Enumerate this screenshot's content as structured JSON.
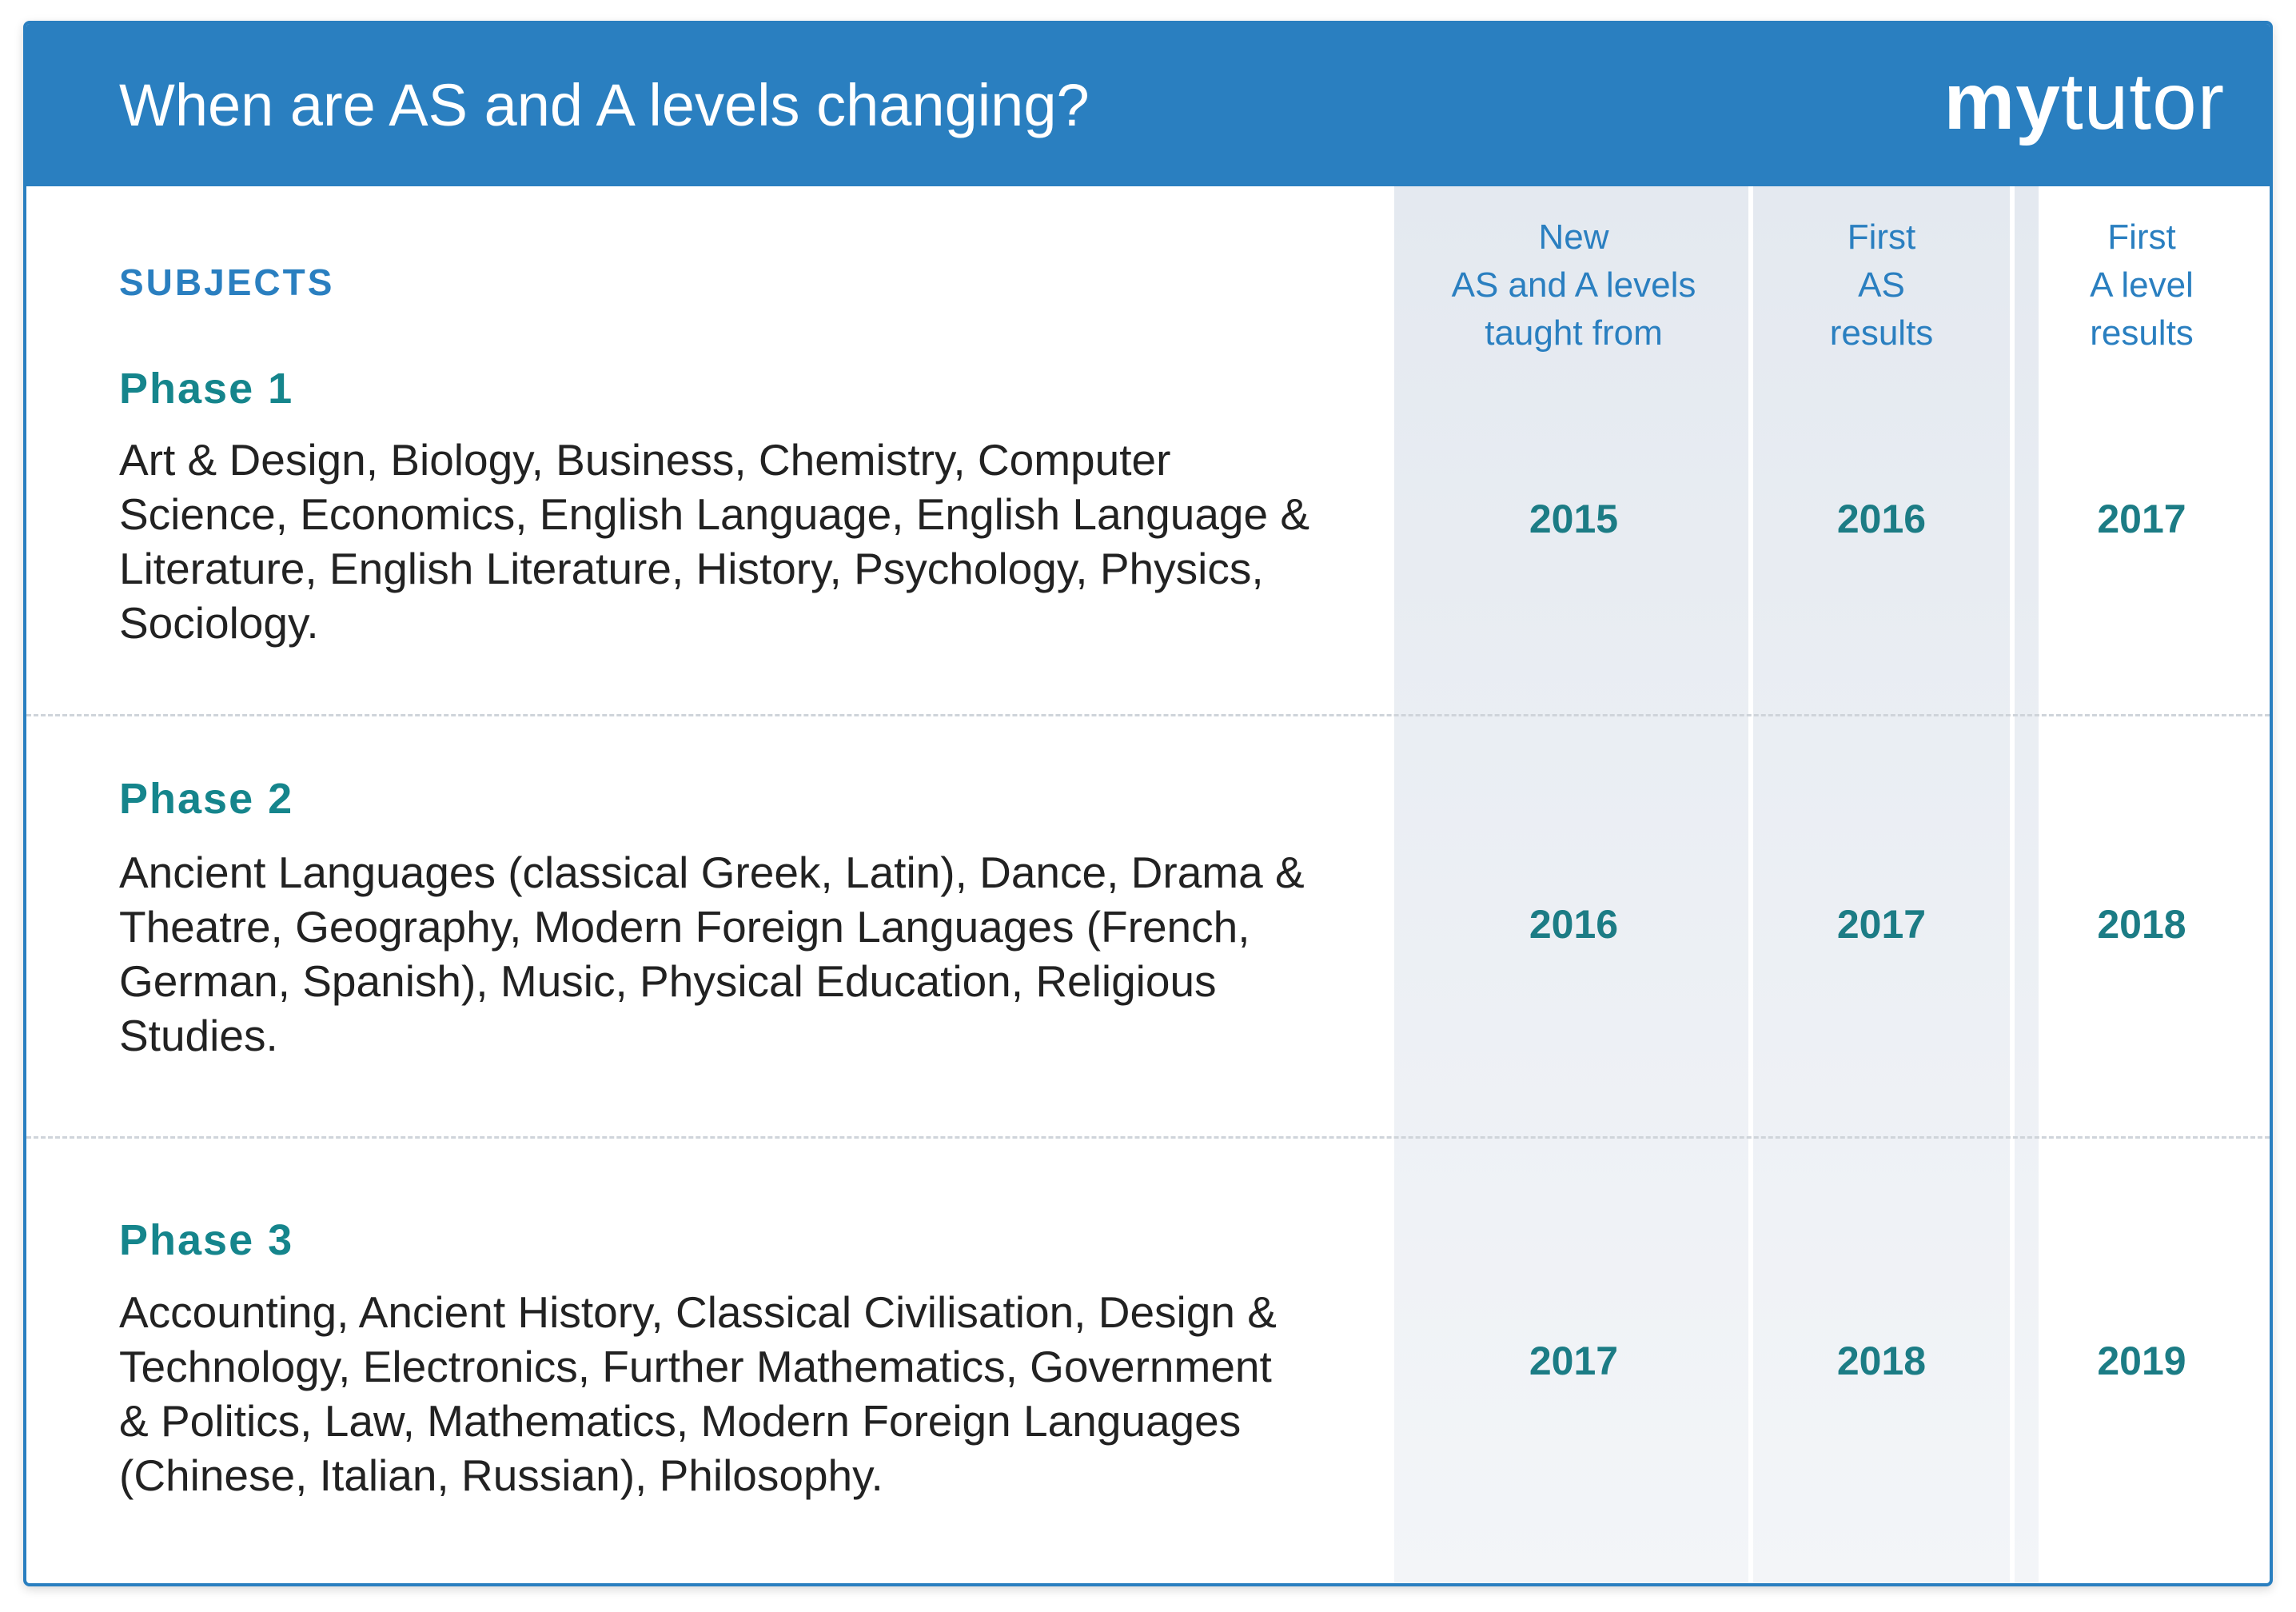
{
  "header": {
    "title": "When are AS and A levels changing?",
    "logo": {
      "bold": "my",
      "light": "tutor"
    }
  },
  "table": {
    "subjects_heading": "SUBJECTS",
    "columns": [
      [
        "New",
        "AS and A levels",
        "taught from"
      ],
      [
        "First",
        "AS",
        "results"
      ],
      [
        "First",
        "A level",
        "results"
      ]
    ],
    "rows": [
      {
        "phase": "Phase 1",
        "subjects": "Art & Design, Biology, Business, Chemistry, Computer Science, Economics, English Language, English Language & Literature, English Literature, History, Psychology, Physics, Sociology.",
        "years": [
          2015,
          2016,
          2017
        ]
      },
      {
        "phase": "Phase 2",
        "subjects": "Ancient Languages (classical Greek, Latin), Dance, Drama & Theatre, Geography, Modern Foreign Languages (French, German, Spanish), Music, Physical Education, Religious Studies.",
        "years": [
          2016,
          2017,
          2018
        ]
      },
      {
        "phase": "Phase 3",
        "subjects": "Accounting, Ancient History, Classical Civilisation, Design & Technology, Electronics, Further Mathematics, Government & Politics, Law, Mathematics, Modern Foreign Languages (Chinese, Italian, Russian), Philosophy.",
        "years": [
          2017,
          2018,
          2019
        ]
      }
    ]
  }
}
